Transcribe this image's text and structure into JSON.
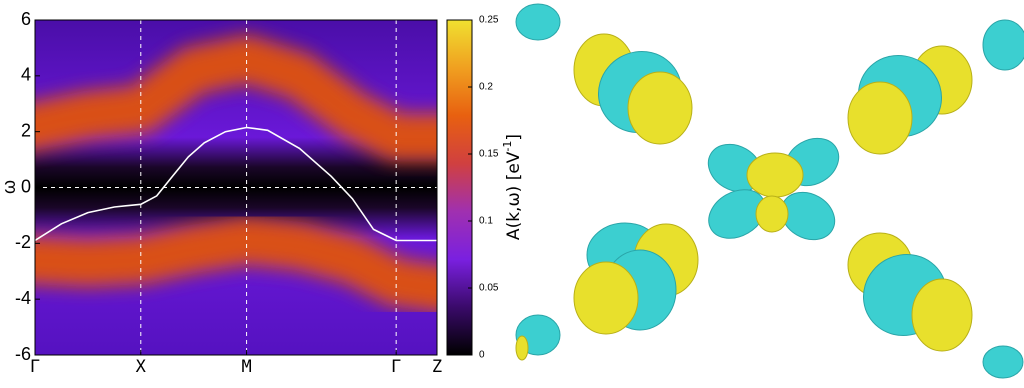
{
  "chart_data": {
    "type": "spectral",
    "y_label": "ω",
    "colorbar_label": "A(k,ω) [eV",
    "colorbar_label_sup": "-1",
    "colorbar_label_end": "]",
    "xlim": [
      0,
      3.8
    ],
    "ylim": [
      -6,
      6
    ],
    "xticks": [
      {
        "value": 0,
        "label": "Γ"
      },
      {
        "value": 1,
        "label": "X"
      },
      {
        "value": 2,
        "label": "M"
      },
      {
        "value": 3.414,
        "label": "Γ"
      },
      {
        "value": 3.8,
        "label": "Z"
      }
    ],
    "yticks": [
      -6,
      -4,
      -2,
      0,
      2,
      4,
      6
    ],
    "hline": 0,
    "grid": true,
    "bands": [
      {
        "color": "#e0520e",
        "x": [
          0,
          0.5,
          1,
          1.5,
          2,
          2.5,
          3,
          3.414,
          3.8
        ],
        "values": [
          2.2,
          2.6,
          2.8,
          4.2,
          4.6,
          4.0,
          2.6,
          1.8,
          1.8
        ]
      },
      {
        "color": "#e0520e",
        "x": [
          0,
          0.5,
          1,
          1.5,
          2,
          2.5,
          3,
          3.414,
          3.8
        ],
        "values": [
          -2.6,
          -2.7,
          -2.6,
          -2.2,
          -1.9,
          -2.1,
          -2.6,
          -3.4,
          -3.6
        ]
      }
    ],
    "series": [
      {
        "color": "#ffffff",
        "x": [
          0,
          0.25,
          0.5,
          0.75,
          1,
          1.15,
          1.3,
          1.45,
          1.6,
          1.8,
          2,
          2.2,
          2.5,
          2.8,
          3.0,
          3.2,
          3.414,
          3.8
        ],
        "values": [
          -1.9,
          -1.3,
          -0.9,
          -0.7,
          -0.6,
          -0.3,
          0.4,
          1.1,
          1.6,
          2.0,
          2.15,
          2.05,
          1.4,
          0.4,
          -0.4,
          -1.5,
          -1.9,
          -1.9
        ]
      }
    ],
    "colorbar": {
      "lim": [
        0,
        0.25
      ],
      "ticks": [
        0,
        0.05,
        0.1,
        0.15,
        0.2,
        0.25
      ],
      "colormap": [
        "#000000",
        "#3a0a6a",
        "#7a20e0",
        "#a030b0",
        "#d04040",
        "#e86010",
        "#f0a020",
        "#f0e030"
      ]
    }
  }
}
